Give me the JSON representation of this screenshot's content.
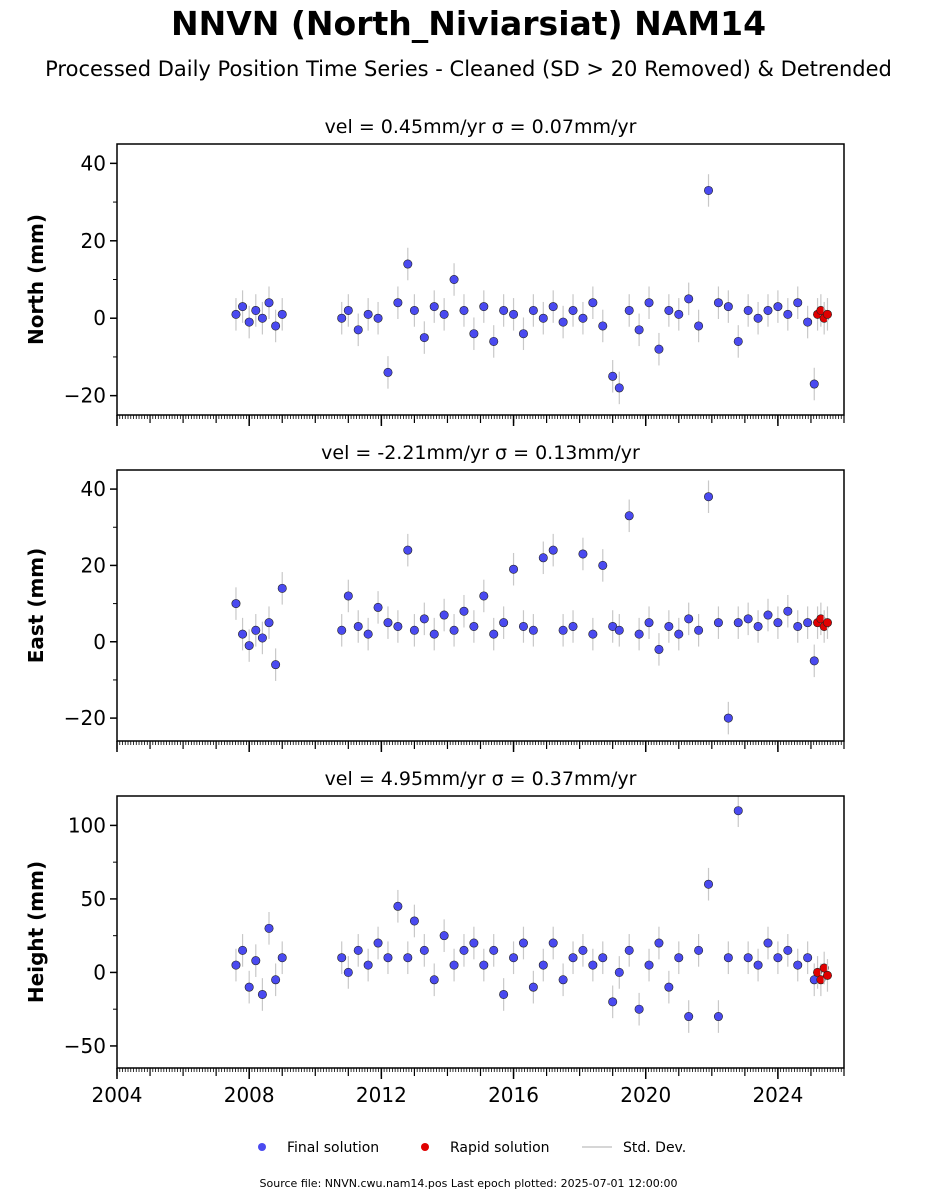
{
  "title": "NNVN (North_Niviarsiat) NAM14",
  "subtitle": "Processed Daily Position Time Series - Cleaned (SD > 20 Removed) & Detrended",
  "footer": "Source file: NNVN.cwu.nam14.pos  Last epoch plotted: 2025-07-01 12:00:00",
  "colors": {
    "final": "#4a4af0",
    "rapid": "#e00000",
    "stddev": "#c8c8c8",
    "axis": "#000000"
  },
  "legend": [
    {
      "key": "final",
      "label": "Final solution"
    },
    {
      "key": "rapid",
      "label": "Rapid solution"
    },
    {
      "key": "stddev",
      "label": "Std. Dev."
    }
  ],
  "chart_data": [
    {
      "type": "scatter",
      "panel_title": "vel = 0.45mm/yr   σ = 0.07mm/yr",
      "ylabel": "North (mm)",
      "xlim": [
        2004.0,
        2026.0
      ],
      "ylim": [
        -25,
        45
      ],
      "yticks": [
        -20,
        0,
        20,
        40
      ],
      "xticks": [
        2004,
        2008,
        2012,
        2016,
        2020,
        2024
      ],
      "xtick_labels_shown": false,
      "series": [
        {
          "name": "Final solution",
          "key": "final",
          "x": [
            2007.6,
            2007.8,
            2008.0,
            2008.2,
            2008.4,
            2008.6,
            2008.8,
            2009.0,
            2010.8,
            2011.0,
            2011.3,
            2011.6,
            2011.9,
            2012.2,
            2012.5,
            2012.8,
            2013.0,
            2013.3,
            2013.6,
            2013.9,
            2014.2,
            2014.5,
            2014.8,
            2015.1,
            2015.4,
            2015.7,
            2016.0,
            2016.3,
            2016.6,
            2016.9,
            2017.2,
            2017.5,
            2017.8,
            2018.1,
            2018.4,
            2018.7,
            2019.0,
            2019.2,
            2019.5,
            2019.8,
            2020.1,
            2020.4,
            2020.7,
            2021.0,
            2021.3,
            2021.6,
            2021.9,
            2022.2,
            2022.5,
            2022.8,
            2023.1,
            2023.4,
            2023.7,
            2024.0,
            2024.3,
            2024.6,
            2024.9,
            2025.1
          ],
          "y": [
            1,
            3,
            -1,
            2,
            0,
            4,
            -2,
            1,
            0,
            2,
            -3,
            1,
            0,
            -14,
            4,
            14,
            2,
            -5,
            3,
            1,
            10,
            2,
            -4,
            3,
            -6,
            2,
            1,
            -4,
            2,
            0,
            3,
            -1,
            2,
            0,
            4,
            -2,
            -15,
            -18,
            2,
            -3,
            4,
            -8,
            2,
            1,
            5,
            -2,
            33,
            4,
            3,
            -6,
            2,
            0,
            2,
            3,
            1,
            4,
            -1,
            -17
          ]
        },
        {
          "name": "Rapid solution",
          "key": "rapid",
          "x": [
            2025.2,
            2025.3,
            2025.4,
            2025.5
          ],
          "y": [
            1,
            2,
            0,
            1
          ]
        }
      ]
    },
    {
      "type": "scatter",
      "panel_title": "vel = -2.21mm/yr   σ = 0.13mm/yr",
      "ylabel": "East (mm)",
      "xlim": [
        2004.0,
        2026.0
      ],
      "ylim": [
        -26,
        45
      ],
      "yticks": [
        -20,
        0,
        20,
        40
      ],
      "xticks": [
        2004,
        2008,
        2012,
        2016,
        2020,
        2024
      ],
      "xtick_labels_shown": false,
      "series": [
        {
          "name": "Final solution",
          "key": "final",
          "x": [
            2007.6,
            2007.8,
            2008.0,
            2008.2,
            2008.4,
            2008.6,
            2008.8,
            2009.0,
            2010.8,
            2011.0,
            2011.3,
            2011.6,
            2011.9,
            2012.2,
            2012.5,
            2012.8,
            2013.0,
            2013.3,
            2013.6,
            2013.9,
            2014.2,
            2014.5,
            2014.8,
            2015.1,
            2015.4,
            2015.7,
            2016.0,
            2016.3,
            2016.6,
            2016.9,
            2017.2,
            2017.5,
            2017.8,
            2018.1,
            2018.4,
            2018.7,
            2019.0,
            2019.2,
            2019.5,
            2019.8,
            2020.1,
            2020.4,
            2020.7,
            2021.0,
            2021.3,
            2021.6,
            2021.9,
            2022.2,
            2022.5,
            2022.8,
            2023.1,
            2023.4,
            2023.7,
            2024.0,
            2024.3,
            2024.6,
            2024.9,
            2025.1
          ],
          "y": [
            10,
            2,
            -1,
            3,
            1,
            5,
            -6,
            14,
            3,
            12,
            4,
            2,
            9,
            5,
            4,
            24,
            3,
            6,
            2,
            7,
            3,
            8,
            4,
            12,
            2,
            5,
            19,
            4,
            3,
            22,
            24,
            3,
            4,
            23,
            2,
            20,
            4,
            3,
            33,
            2,
            5,
            -2,
            4,
            2,
            6,
            3,
            38,
            5,
            -20,
            5,
            6,
            4,
            7,
            5,
            8,
            4,
            5,
            -5
          ]
        },
        {
          "name": "Rapid solution",
          "key": "rapid",
          "x": [
            2025.2,
            2025.3,
            2025.4,
            2025.5
          ],
          "y": [
            5,
            6,
            4,
            5
          ]
        }
      ]
    },
    {
      "type": "scatter",
      "panel_title": "vel = 4.95mm/yr   σ = 0.37mm/yr",
      "ylabel": "Height (mm)",
      "xlim": [
        2004.0,
        2026.0
      ],
      "ylim": [
        -65,
        120
      ],
      "yticks": [
        -50,
        0,
        50,
        100
      ],
      "xticks": [
        2004,
        2008,
        2012,
        2016,
        2020,
        2024
      ],
      "xtick_labels": [
        "2004",
        "2008",
        "2012",
        "2016",
        "2020",
        "2024"
      ],
      "xtick_labels_shown": true,
      "series": [
        {
          "name": "Final solution",
          "key": "final",
          "x": [
            2007.6,
            2007.8,
            2008.0,
            2008.2,
            2008.4,
            2008.6,
            2008.8,
            2009.0,
            2010.8,
            2011.0,
            2011.3,
            2011.6,
            2011.9,
            2012.2,
            2012.5,
            2012.8,
            2013.0,
            2013.3,
            2013.6,
            2013.9,
            2014.2,
            2014.5,
            2014.8,
            2015.1,
            2015.4,
            2015.7,
            2016.0,
            2016.3,
            2016.6,
            2016.9,
            2017.2,
            2017.5,
            2017.8,
            2018.1,
            2018.4,
            2018.7,
            2019.0,
            2019.2,
            2019.5,
            2019.8,
            2020.1,
            2020.4,
            2020.7,
            2021.0,
            2021.3,
            2021.6,
            2021.9,
            2022.2,
            2022.5,
            2022.8,
            2023.1,
            2023.4,
            2023.7,
            2024.0,
            2024.3,
            2024.6,
            2024.9,
            2025.1
          ],
          "y": [
            5,
            15,
            -10,
            8,
            -15,
            30,
            -5,
            10,
            10,
            0,
            15,
            5,
            20,
            10,
            45,
            10,
            35,
            15,
            -5,
            25,
            5,
            15,
            20,
            5,
            15,
            -15,
            10,
            20,
            -10,
            5,
            20,
            -5,
            10,
            15,
            5,
            10,
            -20,
            0,
            15,
            -25,
            5,
            20,
            -10,
            10,
            -30,
            15,
            60,
            -30,
            10,
            110,
            10,
            5,
            20,
            10,
            15,
            5,
            10,
            -5
          ]
        },
        {
          "name": "Rapid solution",
          "key": "rapid",
          "x": [
            2025.2,
            2025.3,
            2025.4,
            2025.5
          ],
          "y": [
            0,
            -5,
            3,
            -2
          ]
        }
      ]
    }
  ]
}
